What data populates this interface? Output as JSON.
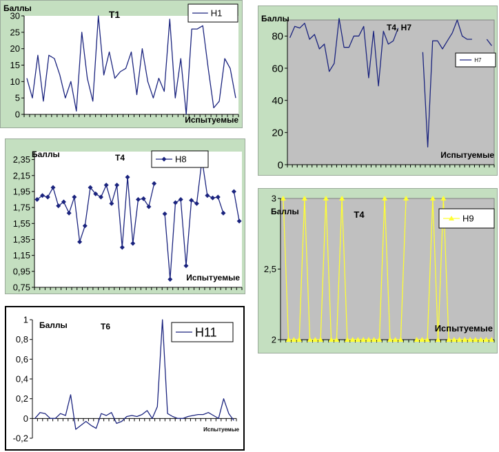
{
  "chart_data": [
    {
      "type": "line",
      "title": "T1",
      "ylabel": "Баллы",
      "xlabel": "Испытуемые",
      "ylim": [
        0,
        30
      ],
      "yticks": [
        "0",
        "5",
        "10",
        "15",
        "20",
        "25",
        "30"
      ],
      "legend": "top-right",
      "grid": false,
      "marker": "none",
      "series": [
        {
          "name": "Н1",
          "color": "#1a237e",
          "values": [
            11,
            5,
            18,
            4,
            18,
            17,
            12,
            5,
            10,
            1,
            25,
            11,
            4,
            30,
            12,
            19,
            11,
            13,
            14,
            19,
            6,
            20,
            10,
            5,
            11,
            7,
            29,
            5,
            17,
            0,
            26,
            26,
            27,
            14,
            2,
            4,
            17,
            14,
            5
          ]
        }
      ]
    },
    {
      "type": "line",
      "title": "T4, Н7",
      "ylabel": "Баллы",
      "xlabel": "Испытуемые",
      "ylim": [
        0,
        90
      ],
      "yticks": [
        "0",
        "20",
        "40",
        "60",
        "80"
      ],
      "legend": "right",
      "grid": false,
      "marker": "none",
      "series": [
        {
          "name": "Н7",
          "color": "#1a237e",
          "values": [
            79,
            86,
            85,
            88,
            78,
            81,
            72,
            75,
            58,
            63,
            91,
            73,
            73,
            80,
            80,
            86,
            54,
            83,
            49,
            83,
            75,
            77,
            85,
            null,
            null,
            null,
            null,
            70,
            11,
            77,
            77,
            72,
            77,
            82,
            90,
            80,
            78,
            78,
            null,
            null,
            78,
            74
          ]
        }
      ]
    },
    {
      "type": "line",
      "title": "T4",
      "ylabel": "Баллы",
      "xlabel": "Испытуемые",
      "ylim": [
        0.75,
        2.45
      ],
      "yticks": [
        "0,75",
        "0,95",
        "1,15",
        "1,35",
        "1,55",
        "1,75",
        "1,95",
        "2,15",
        "2,35"
      ],
      "legend": "top-right",
      "grid": false,
      "marker": "diamond",
      "series": [
        {
          "name": "Н8",
          "color": "#1a237e",
          "values": [
            1.85,
            1.9,
            1.88,
            2.0,
            1.77,
            1.82,
            1.68,
            1.88,
            1.32,
            1.52,
            2.0,
            1.92,
            1.88,
            2.03,
            1.8,
            2.03,
            1.25,
            2.13,
            1.3,
            1.85,
            1.86,
            1.76,
            2.05,
            null,
            1.67,
            0.85,
            1.81,
            1.85,
            1.02,
            1.84,
            1.8,
            2.35,
            1.9,
            1.87,
            1.88,
            1.68,
            null,
            1.95,
            1.58
          ]
        }
      ]
    },
    {
      "type": "line",
      "title": "T4",
      "ylabel": "Баллы",
      "xlabel": "Испытуемые",
      "ylim": [
        2,
        3
      ],
      "yticks": [
        "2",
        "2,5",
        "3"
      ],
      "legend": "top-right",
      "grid": false,
      "marker": "triangle",
      "series": [
        {
          "name": "Н9",
          "color": "#ffff33",
          "values": [
            3,
            2,
            2,
            2,
            3,
            2,
            2,
            2,
            3,
            2,
            2,
            3,
            2,
            2,
            2,
            2,
            2,
            2,
            2,
            3,
            2,
            2,
            2,
            3,
            null,
            2,
            2,
            2,
            3,
            2,
            3,
            2,
            2,
            2,
            2,
            2,
            2,
            2,
            2,
            2
          ]
        }
      ]
    },
    {
      "type": "line",
      "title": "T6",
      "ylabel": "Баллы",
      "xlabel": "Испытуемые",
      "ylim": [
        -0.2,
        1
      ],
      "yticks": [
        "-0,2",
        "0",
        "0,2",
        "0,4",
        "0,6",
        "0,8",
        "1"
      ],
      "legend": "top-right",
      "grid": false,
      "marker": "none",
      "series": [
        {
          "name": "Н11",
          "color": "#1a237e",
          "values": [
            0,
            0.06,
            0.05,
            0,
            0,
            0.05,
            0.03,
            0.24,
            -0.11,
            -0.07,
            -0.03,
            -0.07,
            -0.1,
            0.05,
            0.03,
            0.06,
            -0.05,
            -0.03,
            0.02,
            0.03,
            0.02,
            0.04,
            0.08,
            0,
            0.12,
            1.0,
            0.05,
            0.02,
            0,
            0,
            0.02,
            0.03,
            0.04,
            0.04,
            0.06,
            0.03,
            0,
            0.2,
            0.05,
            -0.02
          ]
        }
      ]
    }
  ]
}
